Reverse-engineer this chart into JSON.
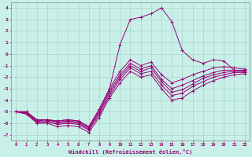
{
  "xlabel": "Windchill (Refroidissement éolien,°C)",
  "background_color": "#c8f0e8",
  "grid_color": "#b0ddd0",
  "line_color": "#990077",
  "x_ticks": [
    0,
    1,
    2,
    3,
    4,
    5,
    6,
    7,
    8,
    9,
    10,
    11,
    12,
    13,
    14,
    15,
    16,
    17,
    18,
    19,
    20,
    21,
    22
  ],
  "ylim": [
    -7.5,
    4.5
  ],
  "xlim": [
    -0.5,
    22.5
  ],
  "series": [
    [
      0,
      1,
      2,
      3,
      4,
      5,
      6,
      7,
      8,
      9,
      10,
      11,
      12,
      13,
      14,
      15,
      16,
      17,
      18,
      19,
      20,
      21,
      22
    ],
    [
      -5.0,
      -5.2,
      -6.0,
      -6.0,
      -6.3,
      -6.2,
      -6.3,
      -6.8,
      -5.5,
      -3.8,
      -2.5,
      -1.5,
      -2.0,
      -1.8,
      -3.0,
      -4.0,
      -3.8,
      -3.2,
      -2.7,
      -2.3,
      -2.0,
      -1.8,
      -1.7
    ],
    [
      -5.0,
      -5.2,
      -5.9,
      -5.9,
      -6.1,
      -6.0,
      -6.1,
      -6.6,
      -5.3,
      -3.6,
      -2.2,
      -1.2,
      -1.7,
      -1.5,
      -2.7,
      -3.6,
      -3.4,
      -2.8,
      -2.4,
      -2.0,
      -1.8,
      -1.6,
      -1.6
    ],
    [
      -5.0,
      -5.1,
      -5.8,
      -5.8,
      -6.0,
      -5.9,
      -6.0,
      -6.5,
      -5.1,
      -3.4,
      -2.0,
      -1.0,
      -1.5,
      -1.2,
      -2.4,
      -3.3,
      -3.1,
      -2.6,
      -2.1,
      -1.8,
      -1.6,
      -1.5,
      -1.5
    ],
    [
      -5.0,
      -5.1,
      -5.8,
      -5.7,
      -5.9,
      -5.8,
      -5.9,
      -6.4,
      -5.0,
      -3.2,
      -1.8,
      -0.8,
      -1.3,
      -1.0,
      -2.2,
      -3.0,
      -2.7,
      -2.3,
      -1.9,
      -1.6,
      -1.4,
      -1.4,
      -1.4
    ],
    [
      -5.0,
      -5.0,
      -5.7,
      -5.7,
      -5.8,
      -5.7,
      -5.8,
      -6.3,
      -4.8,
      -3.0,
      -1.5,
      -0.5,
      -1.0,
      -0.7,
      -1.8,
      -2.5,
      -2.2,
      -1.8,
      -1.5,
      -1.2,
      -1.1,
      -1.2,
      -1.3
    ],
    [
      -5.0,
      -5.0,
      -5.7,
      -5.7,
      -5.8,
      -5.7,
      -5.8,
      -6.3,
      -4.8,
      -3.0,
      0.8,
      3.0,
      3.2,
      3.5,
      4.0,
      2.8,
      0.3,
      -0.5,
      -0.8,
      -0.5,
      -0.6,
      -1.4,
      -1.5
    ]
  ]
}
